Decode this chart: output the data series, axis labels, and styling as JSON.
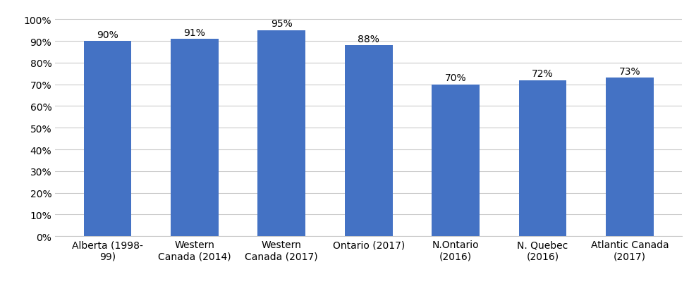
{
  "categories": [
    "Alberta (1998-\n99)",
    "Western\nCanada (2014)",
    "Western\nCanada (2017)",
    "Ontario (2017)",
    "N.Ontario\n(2016)",
    "N. Quebec\n(2016)",
    "Atlantic Canada\n(2017)"
  ],
  "values": [
    0.9,
    0.91,
    0.95,
    0.88,
    0.7,
    0.72,
    0.73
  ],
  "labels": [
    "90%",
    "91%",
    "95%",
    "88%",
    "70%",
    "72%",
    "73%"
  ],
  "bar_color": "#4472C4",
  "background_color": "#FFFFFF",
  "grid_color": "#C9C9C9",
  "ylim": [
    0,
    1.05
  ],
  "yticks": [
    0.0,
    0.1,
    0.2,
    0.3,
    0.4,
    0.5,
    0.6,
    0.7,
    0.8,
    0.9,
    1.0
  ],
  "label_fontsize": 10,
  "tick_fontsize": 10,
  "bar_width": 0.55
}
